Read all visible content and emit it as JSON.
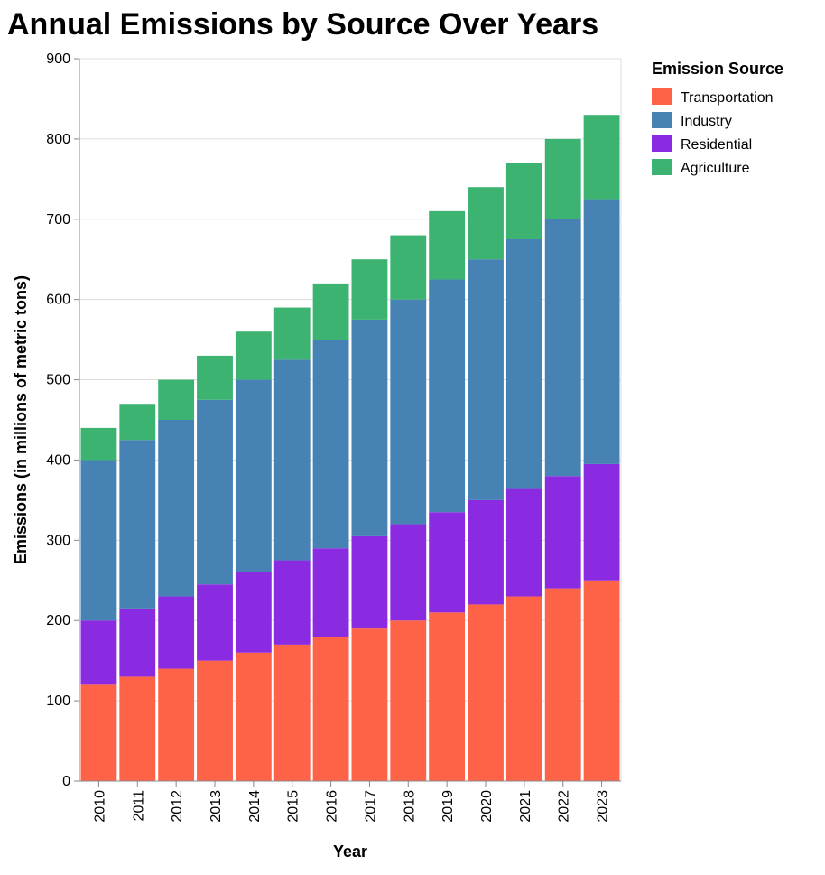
{
  "chart_data": {
    "type": "bar",
    "stacked": true,
    "title": "Annual Emissions by Source Over Years",
    "xlabel": "Year",
    "ylabel": "Emissions (in millions of metric tons)",
    "ylim": [
      0,
      900
    ],
    "yticks": [
      0,
      100,
      200,
      300,
      400,
      500,
      600,
      700,
      800,
      900
    ],
    "grid": true,
    "legend_position": "right",
    "legend_title": "Emission Source",
    "categories": [
      "2010",
      "2011",
      "2012",
      "2013",
      "2014",
      "2015",
      "2016",
      "2017",
      "2018",
      "2019",
      "2020",
      "2021",
      "2022",
      "2023"
    ],
    "series": [
      {
        "name": "Transportation",
        "color": "#ff6347",
        "values": [
          120,
          130,
          140,
          150,
          160,
          170,
          180,
          190,
          200,
          210,
          220,
          230,
          240,
          250
        ]
      },
      {
        "name": "Residential",
        "color": "#8a2be2",
        "values": [
          80,
          85,
          90,
          95,
          100,
          105,
          110,
          115,
          120,
          125,
          130,
          135,
          140,
          145
        ]
      },
      {
        "name": "Industry",
        "color": "#4682b4",
        "values": [
          200,
          210,
          220,
          230,
          240,
          250,
          260,
          270,
          280,
          290,
          300,
          310,
          320,
          330
        ]
      },
      {
        "name": "Agriculture",
        "color": "#3cb371",
        "values": [
          40,
          45,
          50,
          55,
          60,
          65,
          70,
          75,
          80,
          85,
          90,
          95,
          100,
          105
        ]
      }
    ],
    "legend_order": [
      "Transportation",
      "Industry",
      "Residential",
      "Agriculture"
    ]
  }
}
